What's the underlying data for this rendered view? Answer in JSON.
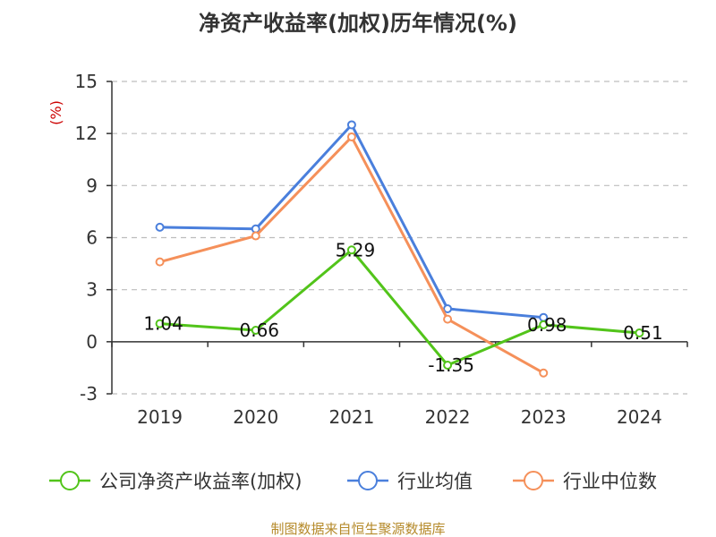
{
  "chart_data": {
    "type": "line",
    "title": "净资产收益率(加权)历年情况(%)",
    "ylabel": "(%)",
    "xlabel": "",
    "categories": [
      "2019",
      "2020",
      "2021",
      "2022",
      "2023",
      "2024"
    ],
    "ylim": [
      -3,
      15
    ],
    "yticks": [
      -3,
      0,
      3,
      6,
      9,
      12,
      15
    ],
    "grid": true,
    "legend_position": "bottom",
    "series": [
      {
        "name": "公司净资产收益率(加权)",
        "color": "#52c41a",
        "values": [
          1.04,
          0.66,
          5.29,
          -1.35,
          0.98,
          0.51
        ],
        "labels": [
          "1.04",
          "0.66",
          "5.29",
          "-1.35",
          "0.98",
          "0.51"
        ]
      },
      {
        "name": "行业均值",
        "color": "#4a7fdc",
        "values": [
          6.6,
          6.5,
          12.5,
          1.9,
          1.4,
          null
        ]
      },
      {
        "name": "行业中位数",
        "color": "#f5905a",
        "values": [
          4.6,
          6.1,
          11.8,
          1.3,
          -1.8,
          null
        ]
      }
    ],
    "source": "制图数据来自恒生聚源数据库"
  }
}
